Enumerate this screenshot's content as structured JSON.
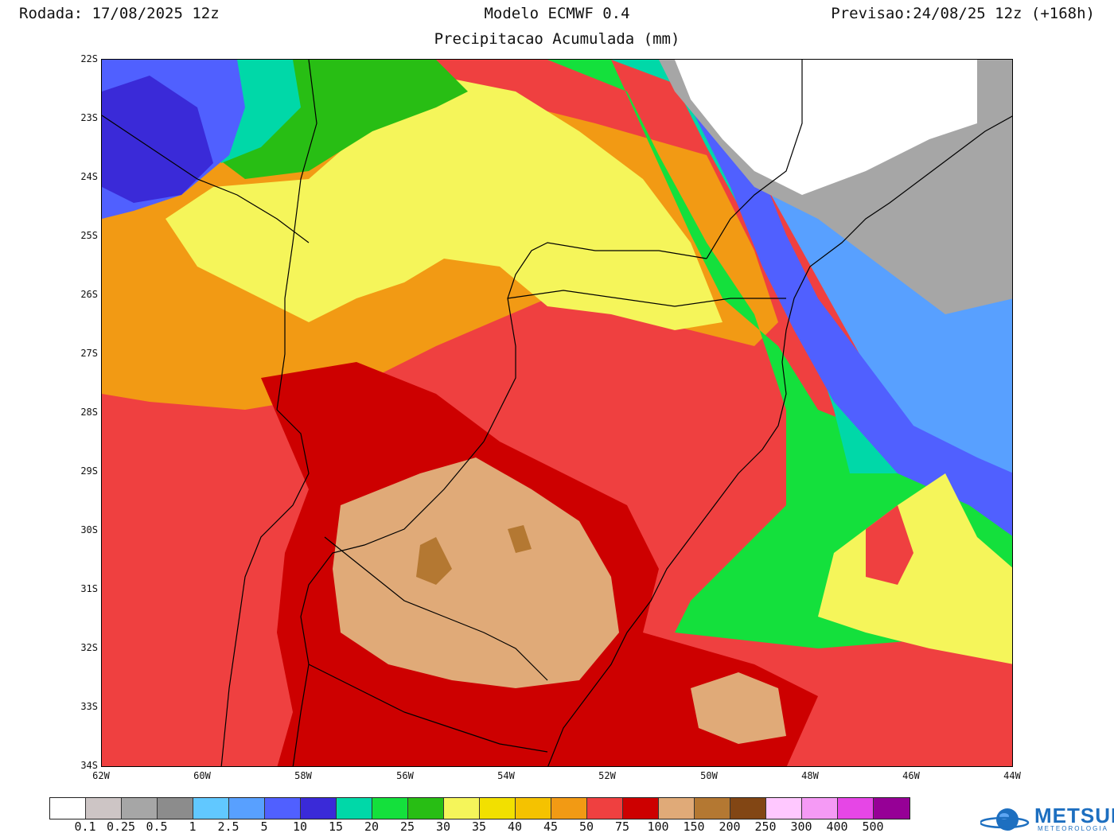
{
  "header": {
    "run": "Rodada: 17/08/2025 12z",
    "model": "Modelo ECMWF 0.4",
    "forecast": "Previsao:24/08/25 12z (+168h)",
    "product": "Precipitacao Acumulada (mm)"
  },
  "axes": {
    "lat_labels": [
      "22S",
      "23S",
      "24S",
      "25S",
      "26S",
      "27S",
      "28S",
      "29S",
      "30S",
      "31S",
      "32S",
      "33S",
      "34S"
    ],
    "lon_labels": [
      "62W",
      "60W",
      "58W",
      "56W",
      "54W",
      "52W",
      "50W",
      "48W",
      "46W",
      "44W"
    ]
  },
  "legend": {
    "labels": [
      "0.1",
      "0.25",
      "0.5",
      "1",
      "2.5",
      "5",
      "10",
      "15",
      "20",
      "25",
      "30",
      "35",
      "40",
      "45",
      "50",
      "75",
      "100",
      "150",
      "200",
      "250",
      "300",
      "400",
      "500"
    ],
    "colors": [
      "#ffffff",
      "#cdc5c5",
      "#a6a6a6",
      "#8c8c8c",
      "#61c8ff",
      "#58a0ff",
      "#5060ff",
      "#3a2ad8",
      "#00d8a8",
      "#14e03c",
      "#28be14",
      "#f5f55a",
      "#f2e000",
      "#f5c200",
      "#f29a14",
      "#ef4040",
      "#cd0000",
      "#e0aa78",
      "#b47832",
      "#824614",
      "#ffc8ff",
      "#f59af5",
      "#e646e6",
      "#960096"
    ]
  },
  "logo": {
    "name": "METSUL",
    "subtitle": "METEOROLOGIA"
  }
}
